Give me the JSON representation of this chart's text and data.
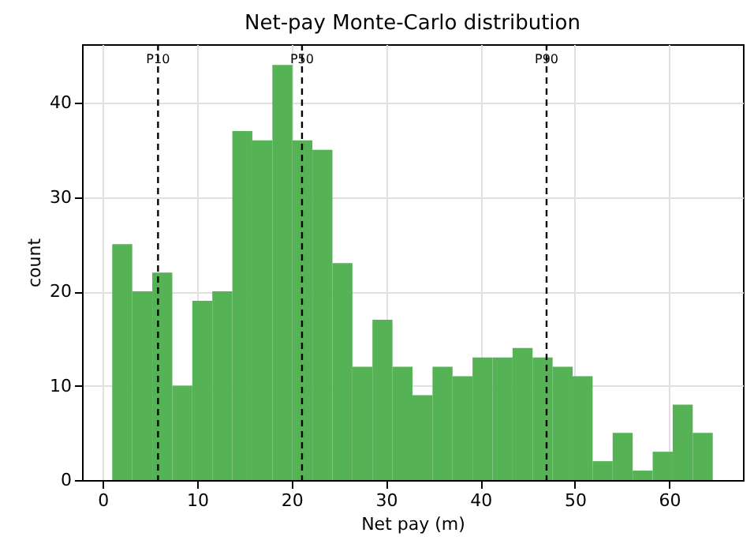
{
  "chart_data": {
    "type": "histogram",
    "title": "Net-pay Monte-Carlo distribution",
    "xlabel": "Net pay (m)",
    "ylabel": "count",
    "color": "#55b255",
    "bins": [
      1.0,
      3.12,
      5.24,
      7.36,
      9.48,
      11.6,
      13.72,
      15.84,
      17.96,
      20.08,
      22.2,
      24.32,
      26.44,
      28.56,
      30.68,
      32.8,
      34.92,
      37.04,
      39.16,
      41.28,
      43.4,
      45.52,
      47.64,
      49.76,
      51.88,
      54.0,
      56.12,
      58.24,
      60.36,
      62.48,
      64.6
    ],
    "values": [
      25,
      20,
      22,
      10,
      19,
      20,
      37,
      36,
      44,
      36,
      35,
      23,
      12,
      17,
      12,
      9,
      12,
      11,
      13,
      13,
      14,
      13,
      12,
      11,
      2,
      5,
      1,
      3,
      8,
      5
    ],
    "xlim": [
      -2.2,
      67.8
    ],
    "ylim": [
      0,
      46.2
    ],
    "xticks": [
      0,
      10,
      20,
      30,
      40,
      50,
      60
    ],
    "yticks": [
      0,
      10,
      20,
      30,
      40
    ],
    "grid": true,
    "ref_lines": [
      {
        "axis": "x",
        "value": 5.85,
        "label": "P10",
        "color": "#000000",
        "line_style": "dashed"
      },
      {
        "axis": "x",
        "value": 21.1,
        "label": "P50",
        "color": "#000000",
        "line_style": "dashed"
      },
      {
        "axis": "x",
        "value": 47.0,
        "label": "P90",
        "color": "#000000",
        "line_style": "dashed"
      }
    ]
  }
}
